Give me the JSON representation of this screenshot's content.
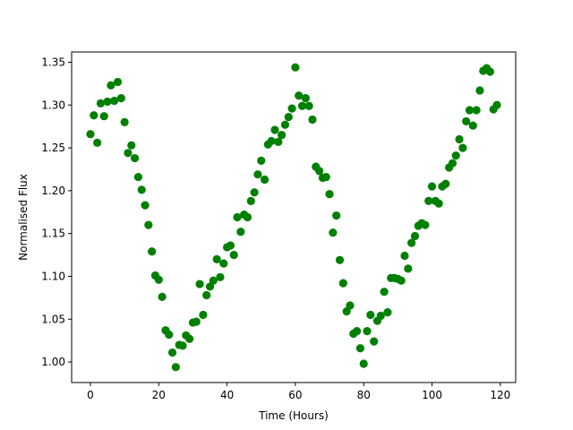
{
  "chart_data": {
    "type": "scatter",
    "xlabel": "Time (Hours)",
    "ylabel": "Normalised Flux",
    "xlim": [
      -5.5,
      124.5
    ],
    "ylim": [
      0.976,
      1.362
    ],
    "x_ticks": [
      0,
      20,
      40,
      60,
      80,
      100,
      120
    ],
    "y_ticks": [
      1.0,
      1.05,
      1.1,
      1.15,
      1.2,
      1.25,
      1.3,
      1.35
    ],
    "x_tick_labels": [
      "0",
      "20",
      "40",
      "60",
      "80",
      "100",
      "120"
    ],
    "y_tick_labels": [
      "1.00",
      "1.05",
      "1.10",
      "1.15",
      "1.20",
      "1.25",
      "1.30",
      "1.35"
    ],
    "grid": false,
    "marker_color": "#008000",
    "series": [
      {
        "x": [
          0,
          1,
          2,
          3,
          4,
          5,
          6,
          7,
          8,
          9,
          10,
          11,
          12,
          13,
          14,
          15,
          16,
          17,
          18,
          19,
          20,
          21,
          22,
          23,
          24,
          25,
          26,
          27,
          28,
          29,
          30,
          31,
          32,
          33,
          34,
          35,
          36,
          37,
          38,
          39,
          40,
          41,
          42,
          43,
          44,
          45,
          46,
          47,
          48,
          49,
          50,
          51,
          52,
          53,
          54,
          55,
          56,
          57,
          58,
          59,
          60,
          61,
          62,
          63,
          64,
          65,
          66,
          67,
          68,
          69,
          70,
          71,
          72,
          73,
          74,
          75,
          76,
          77,
          78,
          79,
          80,
          81,
          82,
          83,
          84,
          85,
          86,
          87,
          88,
          89,
          90,
          91,
          92,
          93,
          94,
          95,
          96,
          97,
          98,
          99,
          100,
          101,
          102,
          103,
          104,
          105,
          106,
          107,
          108,
          109,
          110,
          111,
          112,
          113,
          114,
          115,
          116,
          117,
          118,
          119
        ],
        "y": [
          1.266,
          1.288,
          1.256,
          1.302,
          1.287,
          1.304,
          1.323,
          1.305,
          1.327,
          1.308,
          1.28,
          1.244,
          1.253,
          1.238,
          1.216,
          1.201,
          1.183,
          1.16,
          1.129,
          1.101,
          1.096,
          1.076,
          1.037,
          1.032,
          1.011,
          0.994,
          1.02,
          1.019,
          1.031,
          1.027,
          1.046,
          1.047,
          1.091,
          1.055,
          1.078,
          1.088,
          1.095,
          1.12,
          1.099,
          1.115,
          1.134,
          1.136,
          1.125,
          1.169,
          1.152,
          1.172,
          1.169,
          1.188,
          1.198,
          1.219,
          1.235,
          1.213,
          1.254,
          1.258,
          1.271,
          1.257,
          1.265,
          1.277,
          1.286,
          1.296,
          1.344,
          1.311,
          1.299,
          1.308,
          1.299,
          1.283,
          1.228,
          1.223,
          1.215,
          1.216,
          1.196,
          1.151,
          1.171,
          1.119,
          1.092,
          1.059,
          1.066,
          1.033,
          1.036,
          1.016,
          0.998,
          1.036,
          1.055,
          1.024,
          1.048,
          1.054,
          1.082,
          1.058,
          1.098,
          1.098,
          1.097,
          1.095,
          1.124,
          1.109,
          1.139,
          1.147,
          1.159,
          1.162,
          1.16,
          1.188,
          1.205,
          1.188,
          1.185,
          1.205,
          1.208,
          1.227,
          1.232,
          1.241,
          1.26,
          1.25,
          1.281,
          1.294,
          1.276,
          1.294,
          1.317,
          1.34,
          1.343,
          1.339,
          1.295,
          1.3
        ]
      }
    ]
  }
}
